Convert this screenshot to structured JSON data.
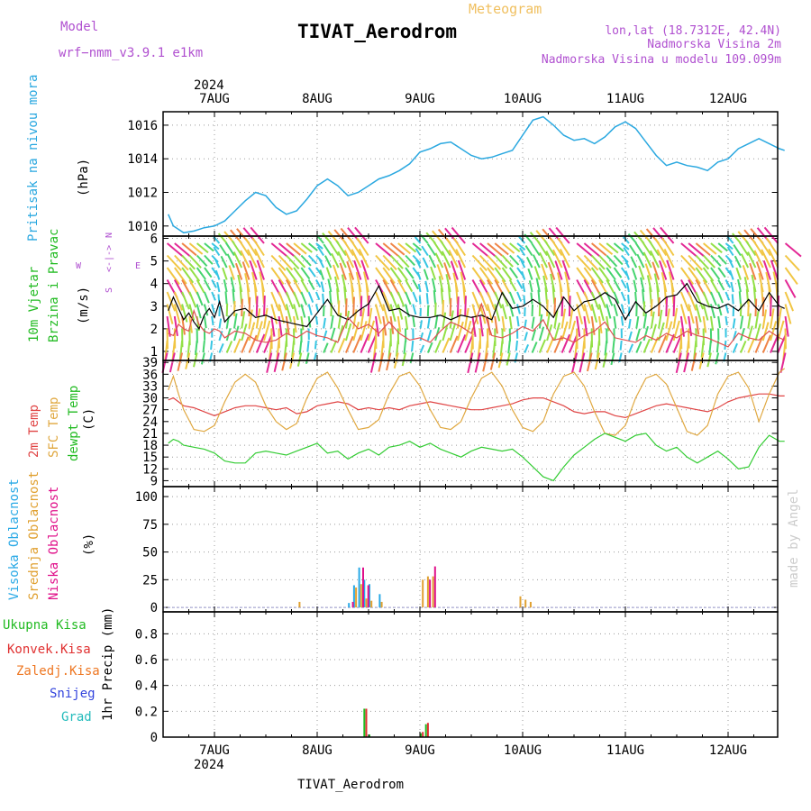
{
  "header": {
    "model_label": "Model",
    "model_name": "wrf−nmm_v3.9.1 e1km",
    "meteogram_label": "Meteogram",
    "station": "TIVAT_Aerodrom",
    "coords": "lon,lat (18.7312E, 42.4N)",
    "elevation": "Nadmorska Visina 2m",
    "model_elevation": "Nadmorska Visina u modelu 109.099m"
  },
  "footer": {
    "station": "TIVAT_Aerodrom",
    "credit": "made by Angel"
  },
  "time_axis": {
    "year": "2024",
    "days": [
      "7AUG",
      "8AUG",
      "9AUG",
      "10AUG",
      "11AUG",
      "12AUG"
    ]
  },
  "colors": {
    "pressure": "#2aa8e0",
    "wind_speed": "#000000",
    "gust": "#e05050",
    "t2m": "#e04545",
    "tsfc": "#e0a840",
    "dewpt": "#33cc33",
    "high_cloud": "#29a9e6",
    "mid_cloud": "#e0a030",
    "low_cloud": "#e0118a",
    "total_precip": "#22bb22",
    "conv_precip": "#e03030",
    "frozen_precip": "#ee7722",
    "snow": "#3344dd",
    "hail": "#22bbbb",
    "purple_label": "#b050d0"
  },
  "chart_data": [
    {
      "type": "line",
      "panel": "pressure",
      "ylabel": [
        "Pritisak na nivou mora",
        "(hPa)"
      ],
      "yticks": [
        1010,
        1012,
        1014,
        1016
      ],
      "ylim": [
        1009.4,
        1016.8
      ],
      "x": [
        -0.45,
        -0.4,
        -0.35,
        -0.3,
        -0.2,
        -0.1,
        0.0,
        0.1,
        0.2,
        0.3,
        0.4,
        0.5,
        0.6,
        0.7,
        0.8,
        0.9,
        1.0,
        1.1,
        1.2,
        1.3,
        1.4,
        1.5,
        1.6,
        1.7,
        1.8,
        1.9,
        2.0,
        2.1,
        2.2,
        2.3,
        2.4,
        2.5,
        2.6,
        2.7,
        2.8,
        2.9,
        3.0,
        3.1,
        3.2,
        3.3,
        3.4,
        3.5,
        3.6,
        3.7,
        3.8,
        3.9,
        4.0,
        4.1,
        4.2,
        4.3,
        4.4,
        4.5,
        4.6,
        4.7,
        4.8,
        4.9,
        5.0,
        5.1,
        5.2,
        5.3,
        5.4,
        5.5,
        5.55
      ],
      "series": [
        {
          "values": [
            1010.7,
            1010.0,
            1009.8,
            1009.6,
            1009.7,
            1009.9,
            1010.0,
            1010.3,
            1010.9,
            1011.5,
            1012.0,
            1011.8,
            1011.1,
            1010.7,
            1010.9,
            1011.6,
            1012.4,
            1012.8,
            1012.4,
            1011.8,
            1012.0,
            1012.4,
            1012.8,
            1013.0,
            1013.3,
            1013.7,
            1014.4,
            1014.6,
            1014.9,
            1015.0,
            1014.6,
            1014.2,
            1014.0,
            1014.1,
            1014.3,
            1014.5,
            1015.4,
            1016.3,
            1016.5,
            1016.0,
            1015.4,
            1015.1,
            1015.2,
            1014.9,
            1015.3,
            1015.9,
            1016.2,
            1015.8,
            1015.0,
            1014.2,
            1013.6,
            1013.8,
            1013.6,
            1013.5,
            1013.3,
            1013.8,
            1014.0,
            1014.6,
            1014.9,
            1015.2,
            1014.9,
            1014.6,
            1014.5
          ]
        }
      ]
    },
    {
      "type": "line",
      "panel": "wind",
      "ylabel": [
        "10m Vjetar",
        "Brzina i Pravac",
        "(m/s)"
      ],
      "yticks": [
        1,
        2,
        3,
        4,
        5,
        6
      ],
      "ylim": [
        0.6,
        6.1
      ],
      "compass": [
        "N",
        "<-|->",
        "S",
        "W",
        "E"
      ],
      "x": [
        -0.45,
        -0.4,
        -0.35,
        -0.3,
        -0.25,
        -0.2,
        -0.15,
        -0.1,
        -0.05,
        0.0,
        0.05,
        0.1,
        0.2,
        0.3,
        0.4,
        0.5,
        0.6,
        0.7,
        0.8,
        0.9,
        1.0,
        1.1,
        1.2,
        1.3,
        1.4,
        1.5,
        1.6,
        1.7,
        1.8,
        1.9,
        2.0,
        2.1,
        2.2,
        2.3,
        2.4,
        2.5,
        2.6,
        2.7,
        2.8,
        2.9,
        3.0,
        3.1,
        3.2,
        3.3,
        3.4,
        3.5,
        3.6,
        3.7,
        3.8,
        3.9,
        4.0,
        4.1,
        4.2,
        4.3,
        4.4,
        4.5,
        4.6,
        4.7,
        4.8,
        4.9,
        5.0,
        5.1,
        5.2,
        5.3,
        5.4,
        5.5,
        5.55
      ],
      "series": [
        {
          "name": "speed",
          "values": [
            2.8,
            3.4,
            2.9,
            2.4,
            2.7,
            2.3,
            2.0,
            2.6,
            2.9,
            2.5,
            3.2,
            2.3,
            2.8,
            2.9,
            2.5,
            2.6,
            2.4,
            2.3,
            2.2,
            2.1,
            2.7,
            3.3,
            2.6,
            2.4,
            2.8,
            3.1,
            3.9,
            2.8,
            2.9,
            2.6,
            2.5,
            2.5,
            2.6,
            2.4,
            2.6,
            2.5,
            2.6,
            2.4,
            3.6,
            2.9,
            3.0,
            3.3,
            3.0,
            2.5,
            3.4,
            2.8,
            3.2,
            3.3,
            3.6,
            3.3,
            2.4,
            3.2,
            2.7,
            3.0,
            3.4,
            3.5,
            4.0,
            3.2,
            3.0,
            2.9,
            3.1,
            2.8,
            3.3,
            2.8,
            3.6,
            3.0,
            2.9
          ]
        },
        {
          "name": "gust",
          "values": [
            1.8,
            1.7,
            2.2,
            2.0,
            1.9,
            2.8,
            2.2,
            1.9,
            1.8,
            2.0,
            1.9,
            1.6,
            1.9,
            1.8,
            1.5,
            1.4,
            1.5,
            1.8,
            1.6,
            1.9,
            1.7,
            1.6,
            1.4,
            2.5,
            2.0,
            2.2,
            1.8,
            2.3,
            1.8,
            1.5,
            1.6,
            1.4,
            1.9,
            2.3,
            2.1,
            1.8,
            3.1,
            1.7,
            1.6,
            1.8,
            2.1,
            1.9,
            2.4,
            1.5,
            1.6,
            1.4,
            1.7,
            1.9,
            2.3,
            1.6,
            1.5,
            1.4,
            1.7,
            1.5,
            1.8,
            1.6,
            1.9,
            1.7,
            1.6,
            1.4,
            1.2,
            1.8,
            1.6,
            1.5,
            1.9,
            1.6,
            1.5
          ]
        }
      ]
    },
    {
      "type": "line",
      "panel": "temperature",
      "ylabel": [
        "2m Temp",
        "SFC Temp",
        "dewpt Temp",
        "(C)"
      ],
      "yticks": [
        9,
        12,
        15,
        18,
        21,
        24,
        27,
        30,
        33,
        36,
        39
      ],
      "ylim": [
        7.5,
        39.5
      ],
      "x": [
        -0.45,
        -0.4,
        -0.35,
        -0.3,
        -0.2,
        -0.1,
        0.0,
        0.1,
        0.2,
        0.3,
        0.4,
        0.5,
        0.6,
        0.7,
        0.8,
        0.9,
        1.0,
        1.1,
        1.2,
        1.3,
        1.4,
        1.5,
        1.6,
        1.7,
        1.8,
        1.9,
        2.0,
        2.1,
        2.2,
        2.3,
        2.4,
        2.5,
        2.6,
        2.7,
        2.8,
        2.9,
        3.0,
        3.1,
        3.2,
        3.3,
        3.4,
        3.5,
        3.6,
        3.7,
        3.8,
        3.9,
        4.0,
        4.1,
        4.2,
        4.3,
        4.4,
        4.5,
        4.6,
        4.7,
        4.8,
        4.9,
        5.0,
        5.1,
        5.2,
        5.3,
        5.4,
        5.5,
        5.55
      ],
      "series": [
        {
          "name": "2m Temp",
          "values": [
            29.5,
            30.0,
            29.0,
            28.0,
            27.5,
            26.5,
            25.5,
            26.5,
            27.5,
            28.0,
            28.0,
            27.5,
            27.0,
            27.5,
            26.0,
            26.5,
            28.0,
            28.5,
            29.0,
            28.5,
            27.0,
            27.5,
            27.0,
            27.5,
            27.0,
            28.0,
            28.5,
            29.0,
            28.5,
            28.0,
            27.5,
            27.0,
            27.0,
            27.5,
            28.0,
            28.5,
            29.5,
            30.0,
            30.0,
            29.0,
            28.0,
            26.5,
            26.0,
            26.5,
            26.5,
            25.5,
            25.0,
            26.0,
            27.0,
            28.0,
            28.5,
            28.0,
            27.5,
            27.0,
            26.5,
            27.5,
            29.0,
            30.0,
            30.5,
            31.0,
            31.0,
            30.5,
            30.5
          ]
        },
        {
          "name": "SFC Temp",
          "values": [
            32.0,
            35.5,
            31.0,
            27.0,
            22.0,
            21.5,
            23.0,
            29.0,
            34.0,
            36.0,
            34.0,
            28.0,
            24.0,
            22.0,
            23.5,
            30.0,
            35.0,
            36.5,
            32.5,
            27.0,
            22.0,
            22.5,
            24.5,
            31.0,
            35.5,
            36.5,
            33.0,
            27.0,
            22.5,
            22.0,
            24.0,
            30.0,
            35.0,
            36.5,
            33.0,
            27.0,
            22.5,
            21.5,
            24.0,
            31.0,
            35.5,
            36.5,
            33.0,
            26.5,
            21.0,
            20.5,
            23.0,
            30.0,
            35.0,
            36.0,
            33.5,
            27.5,
            21.5,
            20.5,
            23.0,
            31.0,
            35.5,
            36.5,
            32.5,
            24.0,
            31.0,
            36.5,
            37.5
          ]
        },
        {
          "name": "dewpt Temp",
          "values": [
            18.5,
            19.5,
            19.0,
            18.0,
            17.5,
            17.0,
            16.0,
            14.0,
            13.5,
            13.5,
            16.0,
            16.5,
            16.0,
            15.5,
            16.5,
            17.5,
            18.5,
            16.0,
            16.5,
            14.5,
            16.0,
            17.0,
            15.5,
            17.5,
            18.0,
            19.0,
            17.5,
            18.5,
            17.0,
            16.0,
            15.0,
            16.5,
            17.5,
            17.0,
            16.5,
            17.0,
            15.0,
            12.5,
            10.0,
            9.0,
            12.5,
            15.5,
            17.5,
            19.5,
            21.0,
            20.0,
            19.0,
            20.5,
            21.0,
            18.0,
            16.5,
            17.5,
            15.0,
            13.5,
            15.0,
            16.5,
            14.5,
            12.0,
            12.5,
            17.5,
            20.5,
            19.0,
            19.0
          ]
        }
      ]
    },
    {
      "type": "bar",
      "panel": "clouds",
      "ylabel": [
        "Visoka Oblacnost",
        "Srednja Oblacnost",
        "Niska Oblacnost",
        "(%)"
      ],
      "yticks": [
        0,
        25,
        50,
        75,
        100
      ],
      "ylim": [
        -4,
        109
      ],
      "series": [
        {
          "name": "Visoka Oblacnost",
          "x": [
            1.3,
            1.35,
            1.4,
            1.45,
            1.5,
            1.6,
            2.0,
            2.05,
            2.1,
            2.95,
            3.0,
            3.05
          ],
          "values": [
            4,
            20,
            36,
            25,
            21,
            12,
            0,
            0,
            0,
            0,
            0,
            0
          ]
        },
        {
          "name": "Srednja Oblacnost",
          "x": [
            0.8,
            1.3,
            1.35,
            1.4,
            1.45,
            1.5,
            1.6,
            2.0,
            2.05,
            2.1,
            2.95,
            3.0,
            3.05
          ],
          "values": [
            5,
            0,
            18,
            21,
            8,
            6,
            5,
            25,
            28,
            28,
            10,
            7,
            5
          ]
        },
        {
          "name": "Niska Oblacnost",
          "x": [
            1.3,
            1.4,
            1.45,
            2.05,
            2.1
          ],
          "values": [
            5,
            36,
            20,
            25,
            37
          ]
        }
      ]
    },
    {
      "type": "bar",
      "panel": "precipitation",
      "ylabel": [
        "1hr Precip (mm)"
      ],
      "legend": [
        "Ukupna Kisa",
        "Konvek.Kisa",
        "Zaledj.Kisa",
        "Snijeg",
        "Grad"
      ],
      "yticks": [
        0,
        0.2,
        0.4,
        0.6,
        0.8
      ],
      "ylim": [
        0,
        0.97
      ],
      "series": [
        {
          "name": "Ukupna Kisa",
          "x": [
            1.45,
            1.5,
            2.0,
            2.05
          ],
          "values": [
            0.22,
            0.02,
            0.03,
            0.1
          ]
        },
        {
          "name": "Konvek.Kisa",
          "x": [
            1.45,
            2.0,
            2.05
          ],
          "values": [
            0.22,
            0.04,
            0.11
          ]
        },
        {
          "name": "Zaledj.Kisa",
          "x": [
            1.45,
            2.05
          ],
          "values": [
            0.0,
            0.0
          ]
        },
        {
          "name": "Snijeg",
          "x": [
            1.45
          ],
          "values": [
            0.0
          ]
        },
        {
          "name": "Grad",
          "x": [
            1.45
          ],
          "values": [
            0.0
          ]
        }
      ]
    }
  ]
}
